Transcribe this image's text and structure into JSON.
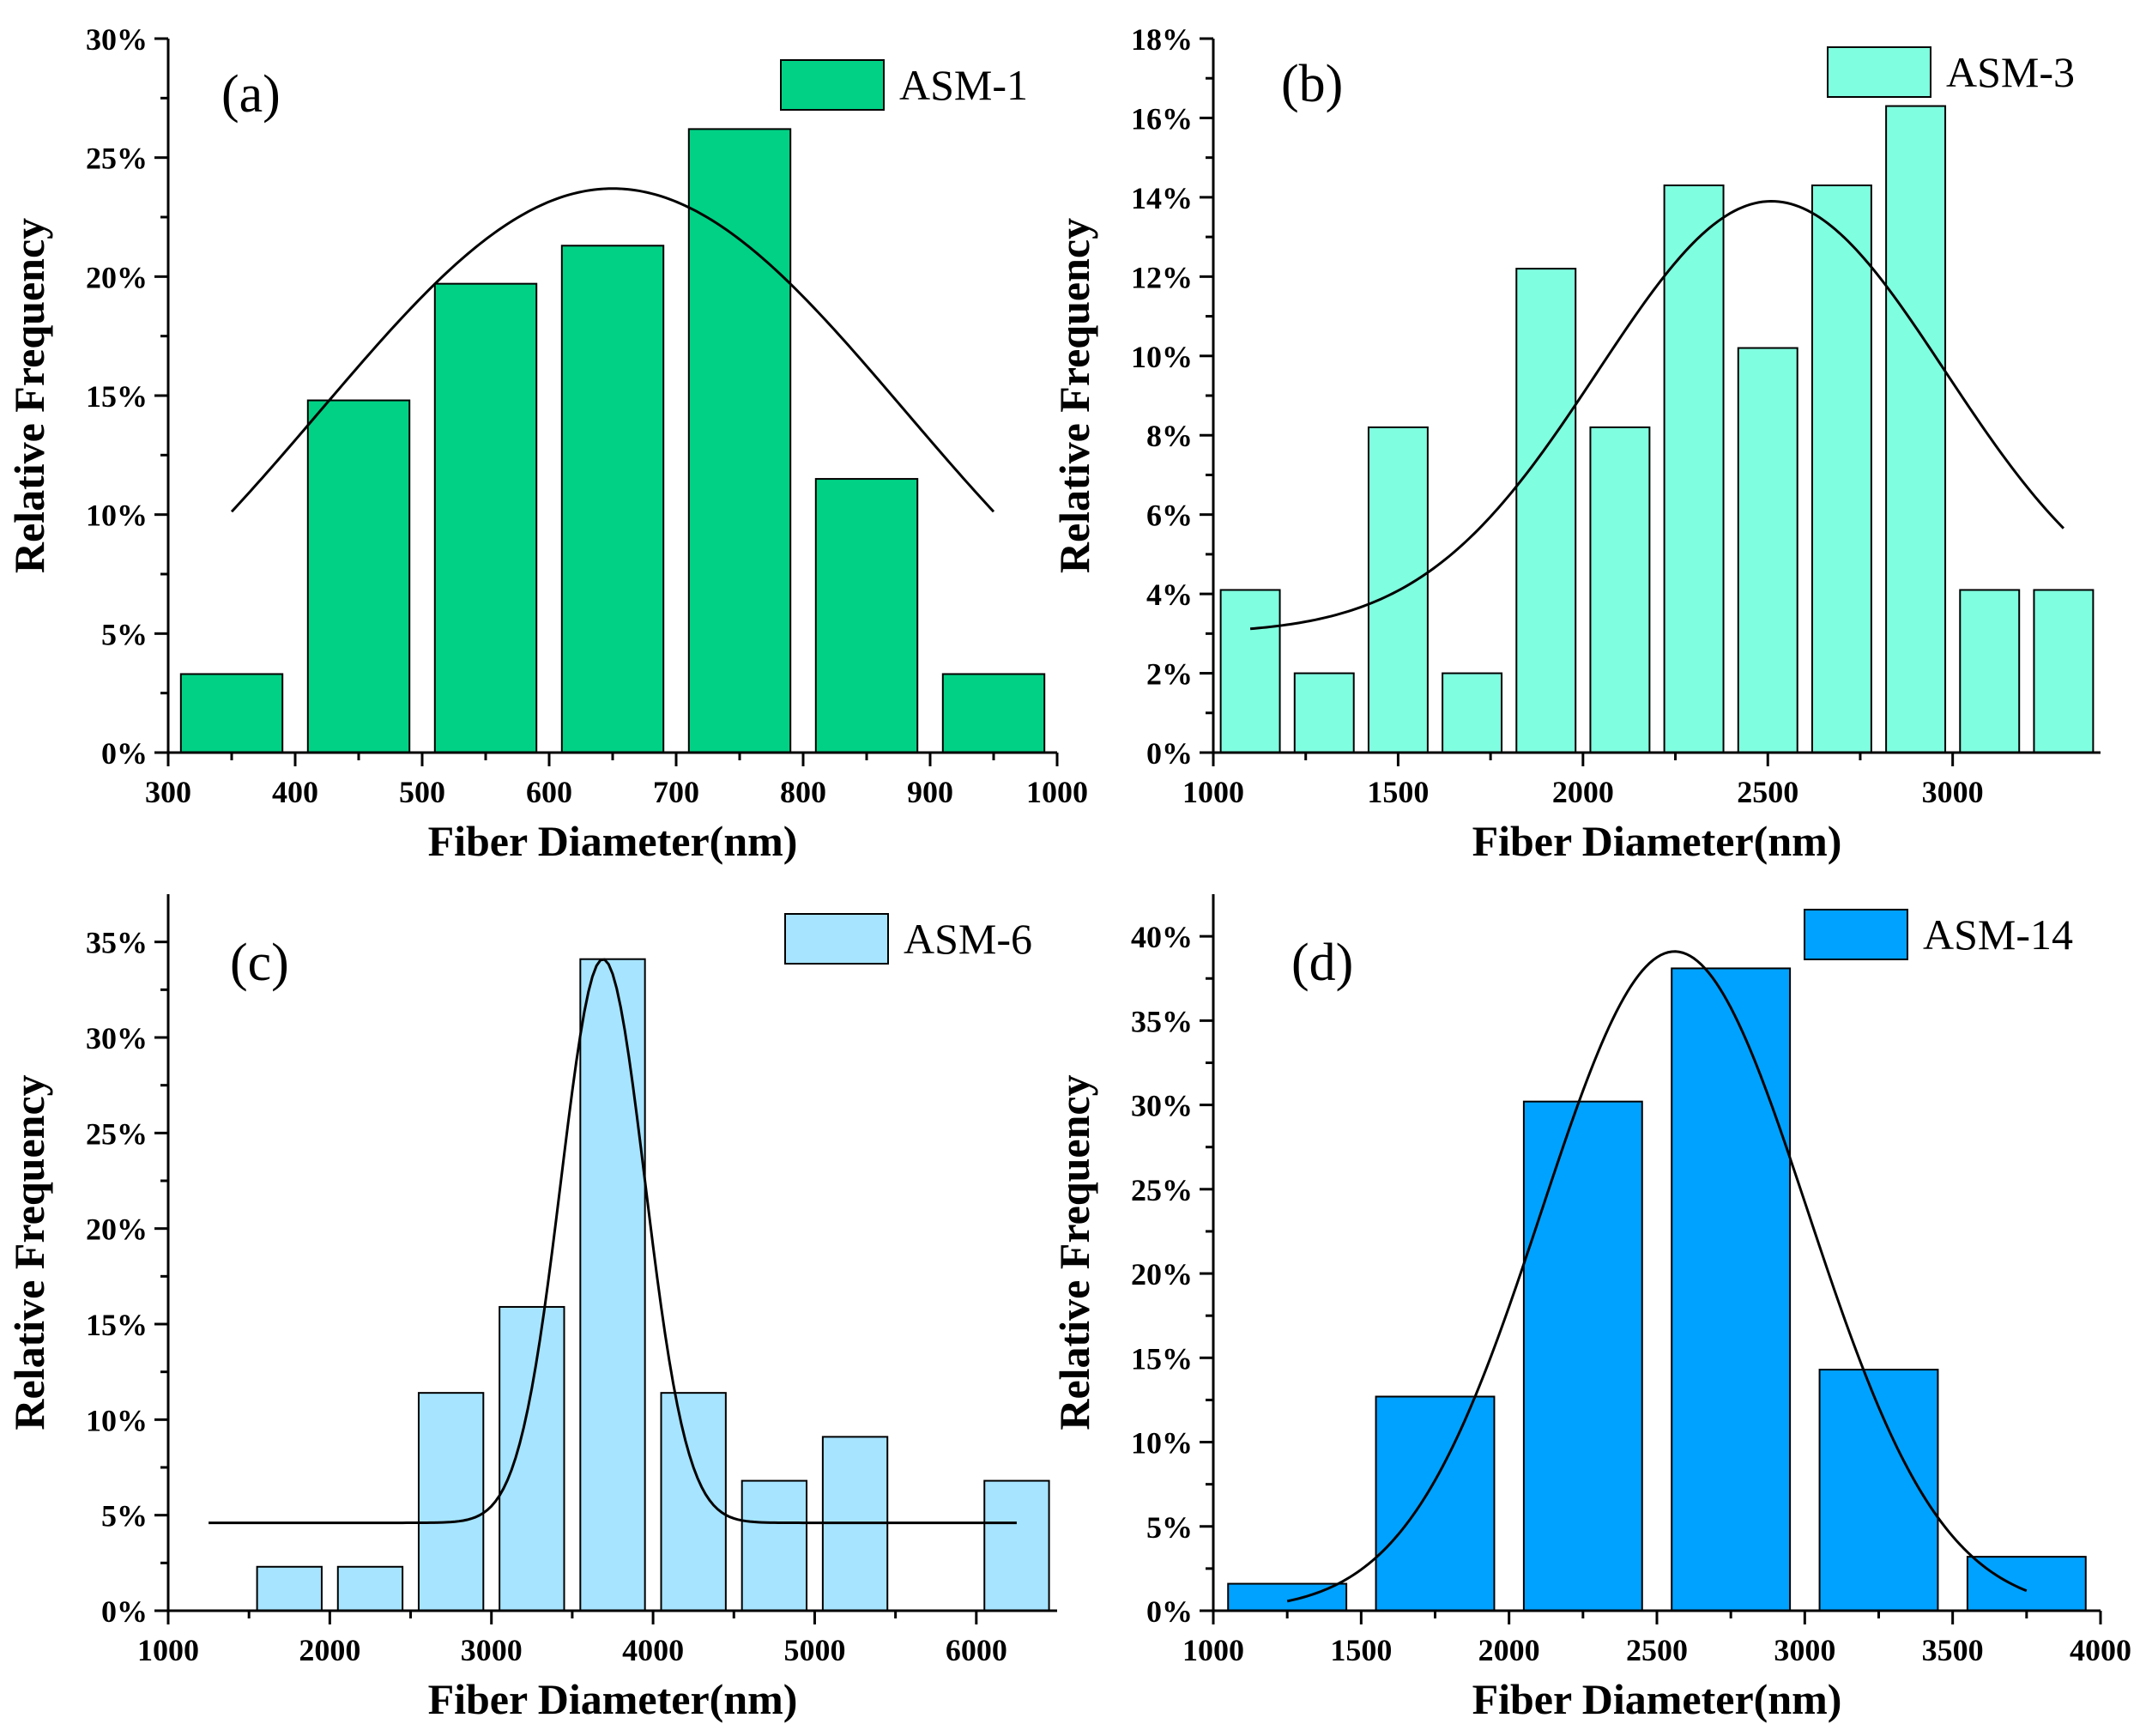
{
  "chart_data": [
    {
      "type": "bar",
      "panel_label": "(a)",
      "legend": "ASM-1",
      "color": "#00D185",
      "xlabel": "Fiber Diameter(nm)",
      "ylabel": "Relative Frequency",
      "xlim": [
        300,
        1000
      ],
      "xticks": [
        300,
        400,
        500,
        600,
        700,
        800,
        900,
        1000
      ],
      "xtick_labels": [
        "300",
        "400",
        "500",
        "600",
        "700",
        "800",
        "900",
        "1000"
      ],
      "ylim": [
        0,
        30
      ],
      "yticks": [
        0,
        5,
        10,
        15,
        20,
        25,
        30
      ],
      "ytick_labels": [
        "0%",
        "5%",
        "10%",
        "15%",
        "20%",
        "25%",
        "30%"
      ],
      "bin_width": 80,
      "bins": [
        350,
        450,
        550,
        650,
        750,
        850,
        950
      ],
      "values": [
        3.3,
        14.8,
        19.7,
        21.3,
        26.2,
        11.5,
        3.3
      ],
      "fit": {
        "type": "gaussian",
        "mean": 650,
        "sigma": 230,
        "amp": 23.7,
        "x_range": [
          350,
          950
        ]
      }
    },
    {
      "type": "bar",
      "panel_label": "(b)",
      "legend": "ASM-3",
      "color": "#80FFE0",
      "xlabel": "Fiber Diameter(nm)",
      "ylabel": "Relative Frequency",
      "xlim": [
        1000,
        3400
      ],
      "xticks": [
        1000,
        1500,
        2000,
        2500,
        3000
      ],
      "xtick_labels": [
        "1000",
        "1500",
        "2000",
        "2500",
        "3000"
      ],
      "ylim": [
        0,
        18
      ],
      "yticks": [
        0,
        2,
        4,
        6,
        8,
        10,
        12,
        14,
        16,
        18
      ],
      "ytick_labels": [
        "0%",
        "2%",
        "4%",
        "6%",
        "8%",
        "10%",
        "12%",
        "14%",
        "16%",
        "18%"
      ],
      "bin_width": 160,
      "bins": [
        1100,
        1300,
        1500,
        1700,
        1900,
        2100,
        2300,
        2500,
        2700,
        2900,
        3100,
        3300
      ],
      "values": [
        4.1,
        2.0,
        8.2,
        2.0,
        12.2,
        8.2,
        14.3,
        10.2,
        14.3,
        16.3,
        4.1,
        4.1
      ],
      "fit": {
        "type": "gaussian",
        "mean": 2510,
        "sigma": 470,
        "amp": 10.9,
        "offset": 3.0,
        "x_range": [
          1100,
          3300
        ]
      }
    },
    {
      "type": "bar",
      "panel_label": "(c)",
      "legend": "ASM-6",
      "color": "#A6E4FF",
      "xlabel": "Fiber Diameter(nm)",
      "ylabel": "Relative Frequency",
      "xlim": [
        1000,
        6500
      ],
      "xticks": [
        1000,
        2000,
        3000,
        4000,
        5000,
        6000
      ],
      "xtick_labels": [
        "1000",
        "2000",
        "3000",
        "4000",
        "5000",
        "6000"
      ],
      "ylim": [
        0,
        37.5
      ],
      "yticks": [
        0,
        5,
        10,
        15,
        20,
        25,
        30,
        35
      ],
      "ytick_labels": [
        "0%",
        "5%",
        "10%",
        "15%",
        "20%",
        "25%",
        "30%",
        "35%"
      ],
      "bin_width": 400,
      "bins": [
        1750,
        2250,
        2750,
        3250,
        3750,
        4250,
        4750,
        5250,
        6250
      ],
      "values": [
        2.3,
        2.3,
        11.4,
        15.9,
        34.1,
        11.4,
        6.8,
        9.1,
        6.8
      ],
      "fit": {
        "type": "gaussian",
        "mean": 3690,
        "sigma": 260,
        "amp": 29.5,
        "offset": 4.6,
        "x_range": [
          1250,
          6250
        ]
      }
    },
    {
      "type": "bar",
      "panel_label": "(d)",
      "legend": "ASM-14",
      "color": "#00A2FF",
      "xlabel": "Fiber Diameter(nm)",
      "ylabel": "Relative Frequency",
      "xlim": [
        1000,
        4000
      ],
      "xticks": [
        1000,
        1500,
        2000,
        2500,
        3000,
        3500,
        4000
      ],
      "xtick_labels": [
        "1000",
        "1500",
        "2000",
        "2500",
        "3000",
        "3500",
        "4000"
      ],
      "ylim": [
        0,
        42.5
      ],
      "yticks": [
        0,
        5,
        10,
        15,
        20,
        25,
        30,
        35,
        40
      ],
      "ytick_labels": [
        "0%",
        "5%",
        "10%",
        "15%",
        "20%",
        "25%",
        "30%",
        "35%",
        "40%"
      ],
      "bin_width": 400,
      "bins": [
        1250,
        1750,
        2250,
        2750,
        3250,
        3750
      ],
      "values": [
        1.6,
        12.7,
        30.2,
        38.1,
        14.3,
        3.2
      ],
      "fit": {
        "type": "gaussian",
        "mean": 2560,
        "sigma": 450,
        "amp": 39.1,
        "x_range": [
          1250,
          3750
        ]
      }
    }
  ]
}
